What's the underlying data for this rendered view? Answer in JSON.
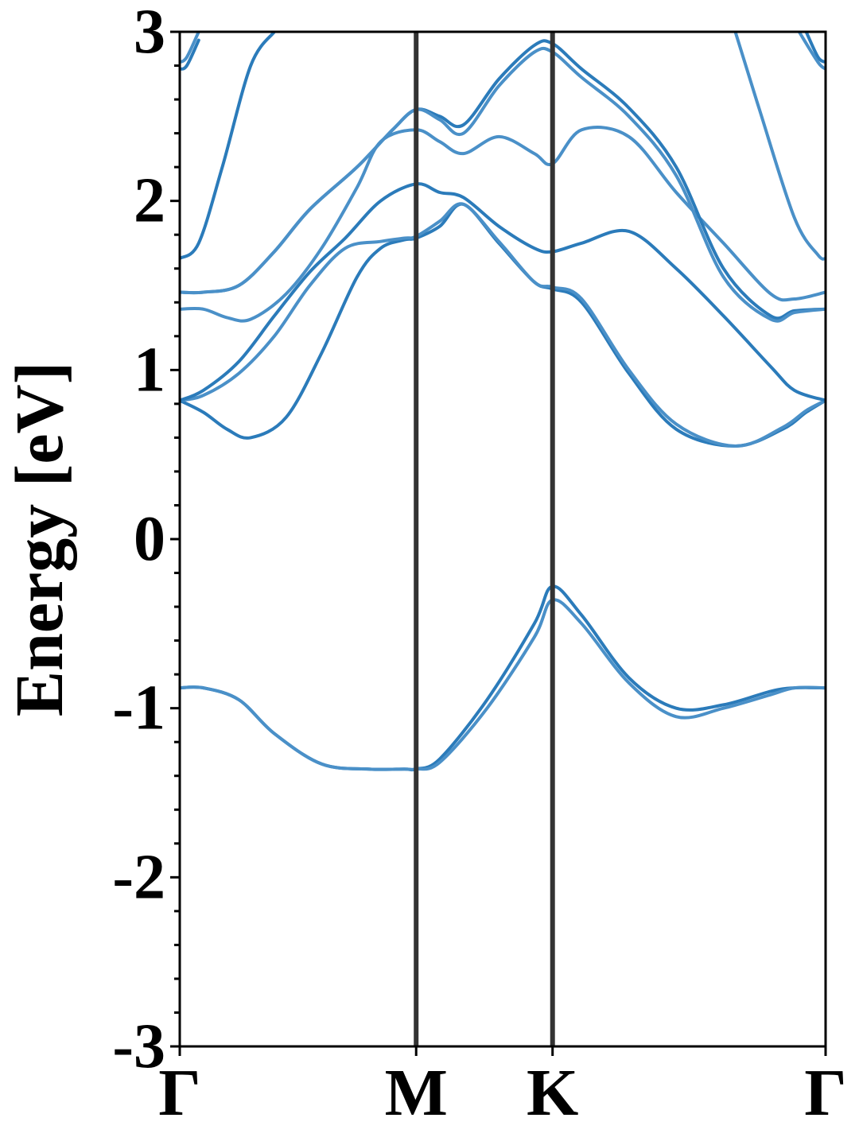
{
  "chart_data": {
    "type": "line",
    "title": "",
    "xlabel": "",
    "ylabel": "Energy [eV]",
    "ylim": [
      -3,
      3
    ],
    "yticks": [
      "-3",
      "-2",
      "-1",
      "0",
      "1",
      "2",
      "3"
    ],
    "xticks": [
      {
        "label": "Γ",
        "pos": 0
      },
      {
        "label": "M",
        "pos": 1
      },
      {
        "label": "K",
        "pos": 1.577
      },
      {
        "label": "Γ",
        "pos": 2.732
      }
    ],
    "xlim": [
      0,
      2.732
    ],
    "grid": false,
    "legend": "none",
    "colors": {
      "band": "#2b7bba",
      "band_light": "#4a90c8",
      "symmetry_line": "#333333"
    },
    "series": [
      {
        "x": [
          0,
          0.1,
          0.25,
          0.4,
          0.6,
          0.8,
          0.95,
          1.0,
          1.1,
          1.3,
          1.5,
          1.577,
          1.7,
          1.9,
          2.1,
          2.3,
          2.5,
          2.6,
          2.732
        ],
        "values": [
          -0.88,
          -0.88,
          -0.95,
          -1.15,
          -1.33,
          -1.36,
          -1.36,
          -1.36,
          -1.3,
          -0.95,
          -0.5,
          -0.28,
          -0.45,
          -0.82,
          -1.0,
          -0.98,
          -0.9,
          -0.88,
          -0.88
        ]
      },
      {
        "x": [
          0,
          0.1,
          0.25,
          0.4,
          0.6,
          0.8,
          0.95,
          1.0,
          1.1,
          1.3,
          1.5,
          1.577,
          1.7,
          1.9,
          2.1,
          2.3,
          2.5,
          2.6,
          2.732
        ],
        "values": [
          -0.88,
          -0.88,
          -0.95,
          -1.15,
          -1.33,
          -1.36,
          -1.36,
          -1.36,
          -1.32,
          -1.0,
          -0.58,
          -0.36,
          -0.5,
          -0.85,
          -1.05,
          -1.0,
          -0.92,
          -0.88,
          -0.88
        ]
      },
      {
        "x": [
          0,
          0.1,
          0.2,
          0.3,
          0.45,
          0.6,
          0.75,
          0.85,
          0.95,
          1.0,
          1.1,
          1.2,
          1.35,
          1.5,
          1.577,
          1.7,
          1.9,
          2.1,
          2.35,
          2.55,
          2.65,
          2.732
        ],
        "values": [
          0.82,
          0.75,
          0.65,
          0.6,
          0.72,
          1.1,
          1.55,
          1.72,
          1.77,
          1.78,
          1.85,
          1.98,
          1.75,
          1.52,
          1.48,
          1.4,
          0.98,
          0.65,
          0.55,
          0.65,
          0.75,
          0.82
        ]
      },
      {
        "x": [
          0,
          0.1,
          0.25,
          0.4,
          0.55,
          0.7,
          0.85,
          0.95,
          1.0,
          1.1,
          1.2,
          1.35,
          1.5,
          1.577,
          1.7,
          1.9,
          2.1,
          2.35,
          2.55,
          2.65,
          2.732
        ],
        "values": [
          0.82,
          0.85,
          0.98,
          1.2,
          1.5,
          1.72,
          1.76,
          1.78,
          1.79,
          1.88,
          1.98,
          1.76,
          1.52,
          1.49,
          1.42,
          1.0,
          0.68,
          0.55,
          0.66,
          0.76,
          0.82
        ]
      },
      {
        "x": [
          0,
          0.1,
          0.25,
          0.4,
          0.55,
          0.7,
          0.85,
          1.0,
          1.1,
          1.2,
          1.35,
          1.5,
          1.577,
          1.7,
          1.9,
          2.1,
          2.3,
          2.5,
          2.6,
          2.732
        ],
        "values": [
          0.82,
          0.88,
          1.05,
          1.32,
          1.58,
          1.78,
          2.0,
          2.1,
          2.05,
          2.02,
          1.85,
          1.72,
          1.7,
          1.75,
          1.82,
          1.6,
          1.32,
          1.02,
          0.88,
          0.82
        ]
      },
      {
        "x": [
          0,
          0.1,
          0.2,
          0.3,
          0.45,
          0.6,
          0.75,
          0.85,
          1.0,
          1.1,
          1.2,
          1.35,
          1.5,
          1.577,
          1.7,
          1.9,
          2.1,
          2.3,
          2.5,
          2.6,
          2.732
        ],
        "values": [
          1.36,
          1.36,
          1.31,
          1.3,
          1.45,
          1.72,
          2.08,
          2.35,
          2.42,
          2.35,
          2.28,
          2.38,
          2.28,
          2.22,
          2.42,
          2.38,
          2.05,
          1.75,
          1.45,
          1.42,
          1.46
        ]
      },
      {
        "x": [
          0,
          0.1,
          0.25,
          0.4,
          0.55,
          0.75,
          0.9,
          1.0,
          1.1,
          1.2,
          1.35,
          1.5,
          1.577,
          1.7,
          1.9,
          2.1,
          2.3,
          2.5,
          2.6,
          2.732
        ],
        "values": [
          1.46,
          1.46,
          1.5,
          1.7,
          1.95,
          2.2,
          2.42,
          2.54,
          2.5,
          2.45,
          2.72,
          2.92,
          2.93,
          2.78,
          2.55,
          2.2,
          1.6,
          1.32,
          1.35,
          1.36
        ]
      },
      {
        "x": [
          0,
          0.1,
          0.25,
          0.4,
          0.55,
          0.75,
          0.9,
          1.0,
          1.1,
          1.2,
          1.35,
          1.5,
          1.577,
          1.7,
          1.9,
          2.1,
          2.3,
          2.5,
          2.6,
          2.732
        ],
        "values": [
          1.46,
          1.46,
          1.5,
          1.7,
          1.95,
          2.2,
          2.42,
          2.54,
          2.48,
          2.4,
          2.68,
          2.88,
          2.88,
          2.73,
          2.5,
          2.15,
          1.55,
          1.3,
          1.34,
          1.36
        ]
      },
      {
        "x": [
          0,
          0.08,
          0.18,
          0.3,
          0.4
        ],
        "values": [
          1.66,
          1.75,
          2.2,
          2.8,
          3.0
        ]
      },
      {
        "x": [
          0,
          0.03,
          0.08
        ],
        "values": [
          2.82,
          2.85,
          3.0
        ]
      },
      {
        "x": [
          0,
          0.03,
          0.08
        ],
        "values": [
          2.78,
          2.8,
          2.95
        ]
      },
      {
        "x": [
          2.35,
          2.45,
          2.6,
          2.7,
          2.732
        ],
        "values": [
          3.0,
          2.55,
          1.9,
          1.68,
          1.66
        ]
      },
      {
        "x": [
          2.65,
          2.7,
          2.732
        ],
        "values": [
          3.0,
          2.85,
          2.82
        ]
      },
      {
        "x": [
          2.62,
          2.7,
          2.732
        ],
        "values": [
          3.0,
          2.82,
          2.78
        ]
      }
    ]
  }
}
